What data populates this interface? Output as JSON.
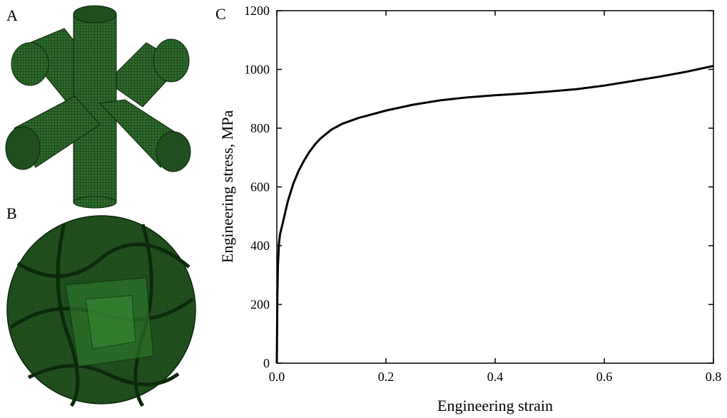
{
  "panels": {
    "a": {
      "label": "A"
    },
    "b": {
      "label": "B"
    },
    "c": {
      "label": "C"
    }
  },
  "colors": {
    "mesh_fill": "#2d6b2b",
    "mesh_dark": "#143d14",
    "mesh_line": "#0b250b",
    "curve": "#000000"
  },
  "chart_data": {
    "type": "line",
    "title": "",
    "xlabel": "Engineering strain",
    "ylabel": "Engineering stress, MPa",
    "xlim": [
      0.0,
      0.8
    ],
    "ylim": [
      0,
      1200
    ],
    "xticks": [
      "0.0",
      "0.2",
      "0.4",
      "0.6",
      "0.8"
    ],
    "yticks": [
      "0",
      "200",
      "400",
      "600",
      "800",
      "1000",
      "1200"
    ],
    "grid": false,
    "series": [
      {
        "x": [
          0.0,
          0.001,
          0.002,
          0.004,
          0.006,
          0.01,
          0.015,
          0.02,
          0.03,
          0.04,
          0.05,
          0.06,
          0.07,
          0.08,
          0.1,
          0.12,
          0.15,
          0.2,
          0.25,
          0.3,
          0.35,
          0.4,
          0.45,
          0.5,
          0.55,
          0.6,
          0.65,
          0.7,
          0.75,
          0.8
        ],
        "y": [
          0,
          230,
          330,
          410,
          440,
          470,
          510,
          550,
          610,
          655,
          690,
          720,
          745,
          765,
          795,
          815,
          835,
          860,
          880,
          895,
          905,
          912,
          918,
          925,
          933,
          945,
          960,
          975,
          992,
          1012
        ]
      }
    ]
  }
}
